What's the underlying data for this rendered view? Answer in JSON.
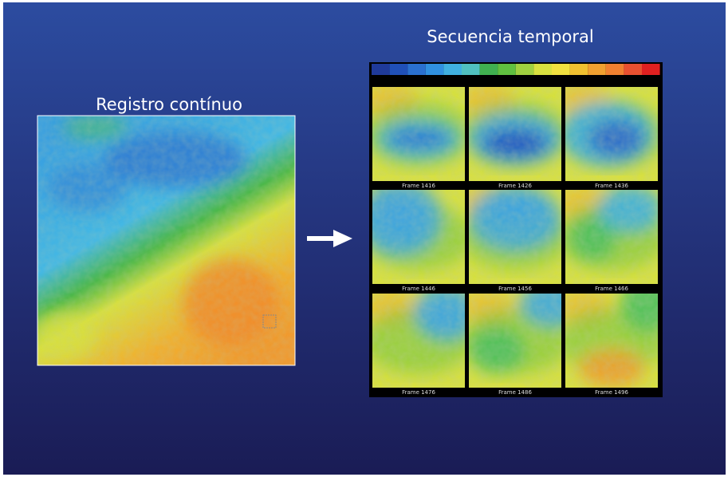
{
  "slide": {
    "left_title": "Registro contínuo",
    "right_title": "Secuencia temporal",
    "frames": [
      "Frame 1416",
      "Frame 1426",
      "Frame 1436",
      "Frame 1446",
      "Frame 1456",
      "Frame 1466",
      "Frame 1476",
      "Frame 1486",
      "Frame 1496"
    ]
  }
}
